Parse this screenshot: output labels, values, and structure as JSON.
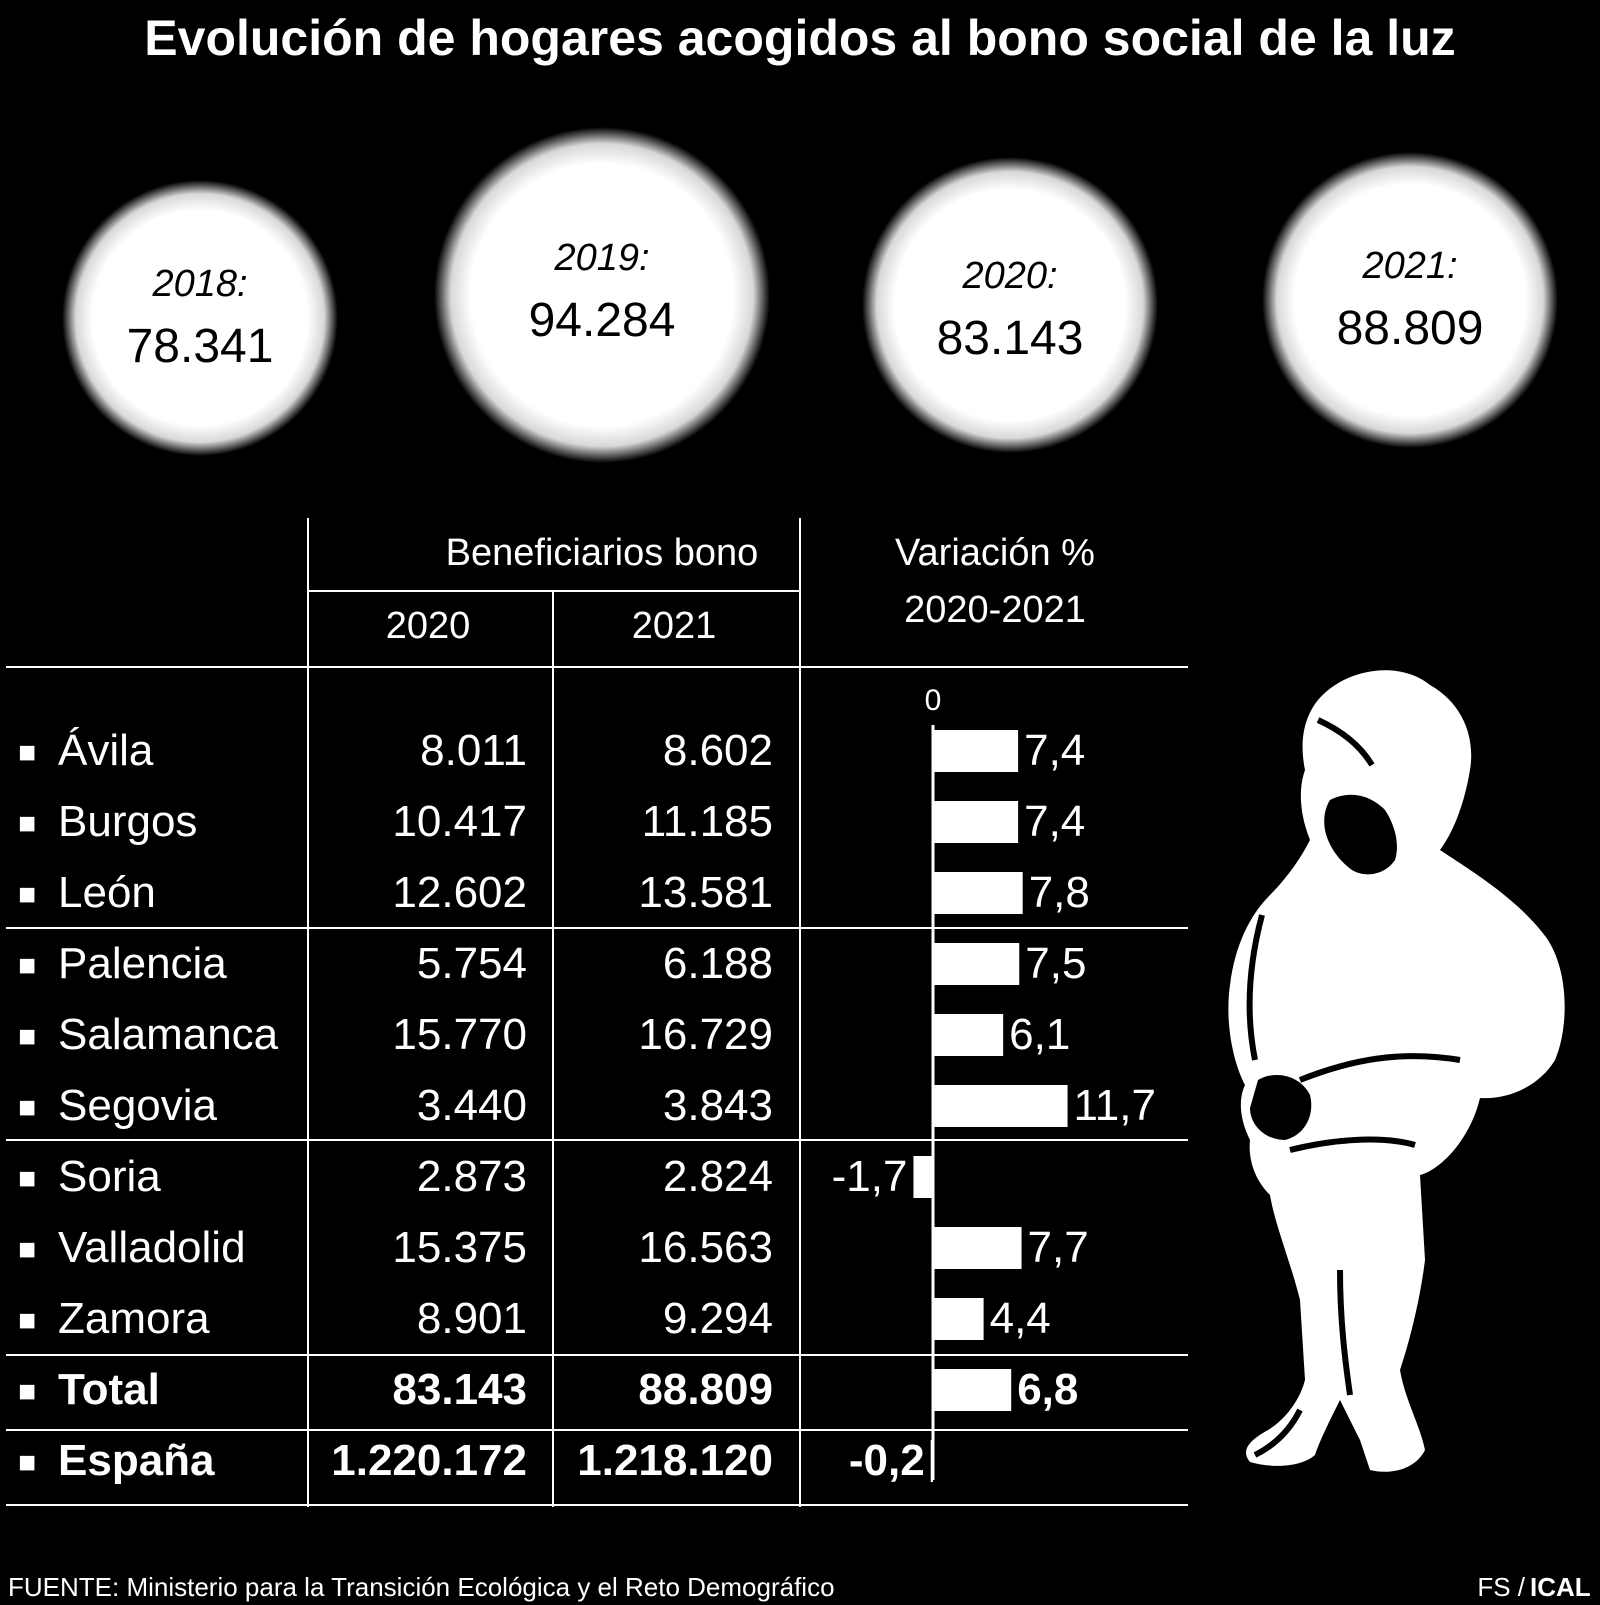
{
  "title": "Evolución de hogares acogidos al bono social de la luz",
  "colors": {
    "background": "#000000",
    "foreground": "#ffffff"
  },
  "year_circles": [
    {
      "year": "2018:",
      "value": "78.341"
    },
    {
      "year": "2019:",
      "value": "94.284"
    },
    {
      "year": "2020:",
      "value": "83.143"
    },
    {
      "year": "2021:",
      "value": "88.809"
    }
  ],
  "table": {
    "group_header": "Beneficiarios bono",
    "col_2020": "2020",
    "col_2021": "2021",
    "variation_header_line1": "Variación %",
    "variation_header_line2": "2020-2021",
    "zero_label": "0",
    "bullet": "■",
    "rows": [
      {
        "name": "Ávila",
        "v2020": "8.011",
        "v2021": "8.602",
        "var": "7,4",
        "bold": false
      },
      {
        "name": "Burgos",
        "v2020": "10.417",
        "v2021": "11.185",
        "var": "7,4",
        "bold": false
      },
      {
        "name": "León",
        "v2020": "12.602",
        "v2021": "13.581",
        "var": "7,8",
        "bold": false
      },
      {
        "name": "Palencia",
        "v2020": "5.754",
        "v2021": "6.188",
        "var": "7,5",
        "bold": false
      },
      {
        "name": "Salamanca",
        "v2020": "15.770",
        "v2021": "16.729",
        "var": "6,1",
        "bold": false
      },
      {
        "name": "Segovia",
        "v2020": "3.440",
        "v2021": "3.843",
        "var": "11,7",
        "bold": false
      },
      {
        "name": "Soria",
        "v2020": "2.873",
        "v2021": "2.824",
        "var": "-1,7",
        "bold": false
      },
      {
        "name": "Valladolid",
        "v2020": "15.375",
        "v2021": "16.563",
        "var": "7,7",
        "bold": false
      },
      {
        "name": "Zamora",
        "v2020": "8.901",
        "v2021": "9.294",
        "var": "4,4",
        "bold": false
      },
      {
        "name": "Total",
        "v2020": "83.143",
        "v2021": "88.809",
        "var": "6,8",
        "bold": true
      },
      {
        "name": "España",
        "v2020": "1.220.172",
        "v2021": "1.218.120",
        "var": "-0,2",
        "bold": true
      }
    ]
  },
  "chart_data": {
    "type": "bar",
    "orientation": "horizontal",
    "title": "Variación % 2020-2021",
    "categories": [
      "Ávila",
      "Burgos",
      "León",
      "Palencia",
      "Salamanca",
      "Segovia",
      "Soria",
      "Valladolid",
      "Zamora",
      "Total",
      "España"
    ],
    "values": [
      7.4,
      7.4,
      7.8,
      7.5,
      6.1,
      11.7,
      -1.7,
      7.7,
      4.4,
      6.8,
      -0.2
    ],
    "xlabel": "",
    "ylabel": ""
  },
  "source": "FUENTE: Ministerio para la Transición Ecológica y el Reto Demográfico",
  "credit_fs": "FS /",
  "credit_ical": "ICAL"
}
